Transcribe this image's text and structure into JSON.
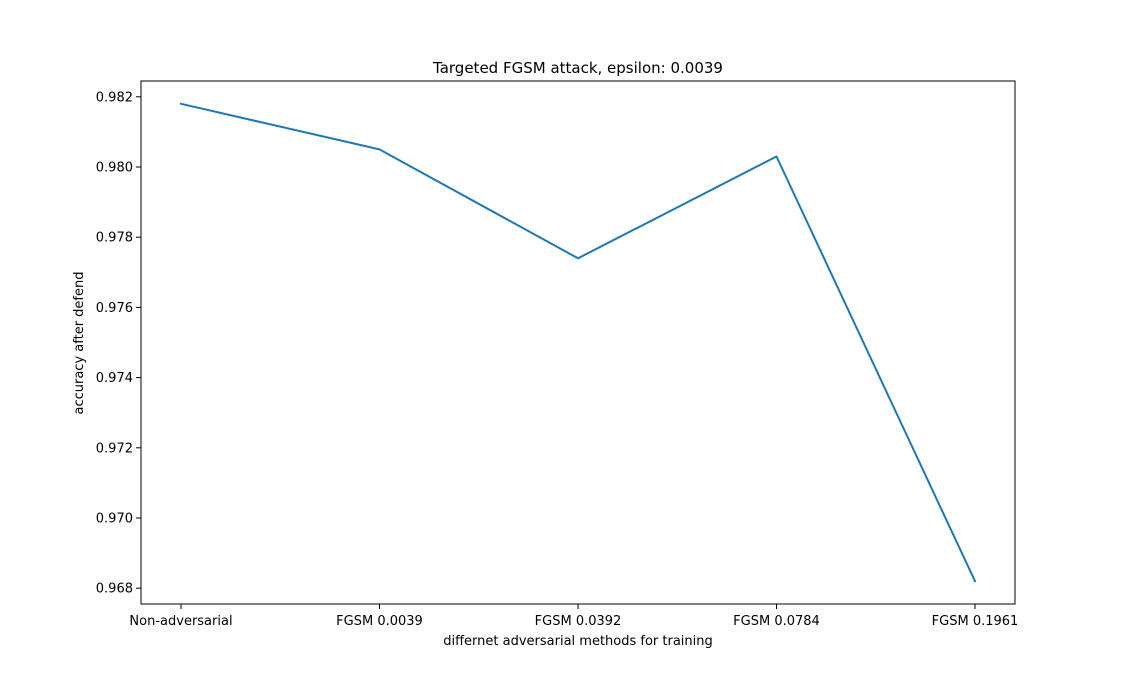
{
  "chart_data": {
    "type": "line",
    "title": "Targeted FGSM attack, epsilon: 0.0039",
    "xlabel": "differnet adversarial methods for training",
    "ylabel": "accuracy after defend",
    "categories": [
      "Non-adversarial",
      "FGSM 0.0039",
      "FGSM 0.0392",
      "FGSM 0.0784",
      "FGSM 0.1961"
    ],
    "series": [
      {
        "values": [
          0.9818,
          0.9805,
          0.9774,
          0.9803,
          0.9682
        ],
        "color": "#1f77b4"
      }
    ],
    "yticks": [
      "0.968",
      "0.970",
      "0.972",
      "0.974",
      "0.976",
      "0.978",
      "0.980",
      "0.982"
    ],
    "ylim": [
      0.96755,
      0.98245
    ],
    "grid": false,
    "legend": "none"
  }
}
